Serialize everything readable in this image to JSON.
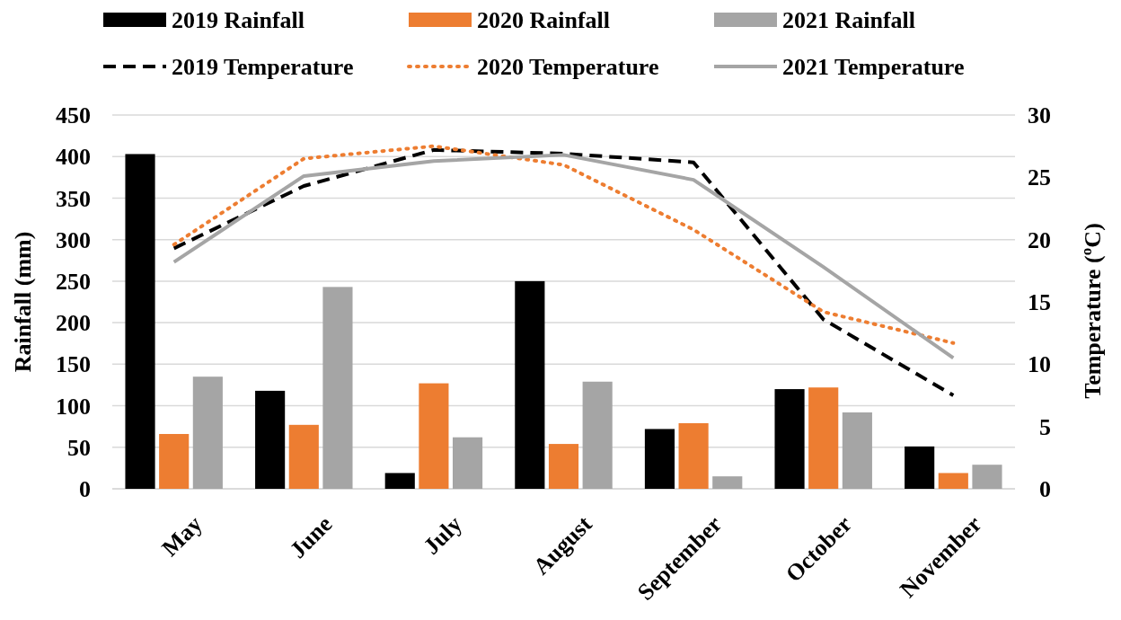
{
  "chart_data": {
    "type": "bar",
    "categories": [
      "May",
      "June",
      "July",
      "August",
      "September",
      "October",
      "November"
    ],
    "ylabel": "Rainfall (mm)",
    "y2label": "Temperature (ºC)",
    "ylim": [
      0,
      450
    ],
    "yticks": [
      0,
      50,
      100,
      150,
      200,
      250,
      300,
      350,
      400,
      450
    ],
    "y2lim": [
      0,
      30
    ],
    "y2ticks": [
      0,
      5,
      10,
      15,
      20,
      25,
      30
    ],
    "grid": "y",
    "legend": "top",
    "series": [
      {
        "name": "2019 Rainfall",
        "color": "#000000",
        "values": [
          403,
          118,
          19,
          250,
          72,
          120,
          51
        ]
      },
      {
        "name": "2020 Rainfall",
        "color": "#ed7d31",
        "values": [
          66,
          77,
          127,
          54,
          79,
          122,
          19
        ]
      },
      {
        "name": "2021 Rainfall",
        "color": "#a5a5a5",
        "values": [
          135,
          243,
          62,
          129,
          15,
          92,
          29
        ]
      },
      {
        "name": "2019 Temperature",
        "type": "line",
        "axis": "y2",
        "line_style": "dashed",
        "color": "#000000",
        "values": [
          19.3,
          24.3,
          27.2,
          26.9,
          26.2,
          13.6,
          7.5
        ]
      },
      {
        "name": "2020 Temperature",
        "type": "line",
        "axis": "y2",
        "line_style": "dotted",
        "color": "#ed7d31",
        "values": [
          19.6,
          26.5,
          27.5,
          26.0,
          20.8,
          14.2,
          11.7
        ]
      },
      {
        "name": "2021 Temperature",
        "type": "line",
        "axis": "y2",
        "line_style": "solid",
        "color": "#a5a5a5",
        "values": [
          18.2,
          25.1,
          26.3,
          26.8,
          24.8,
          17.8,
          10.5
        ]
      }
    ]
  }
}
